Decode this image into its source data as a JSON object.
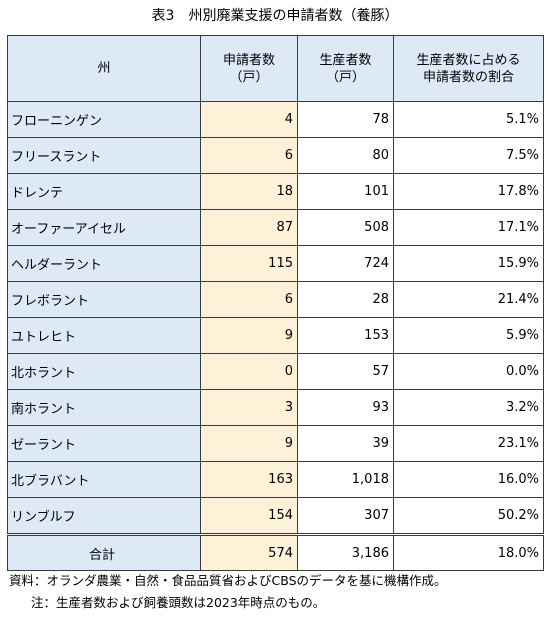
{
  "title": "表3　州別廃業支援の申請者数（養豚）",
  "headers": {
    "province": "州",
    "applicants": "申請者数\n（戸）",
    "producers": "生産者数\n（戸）",
    "share": "生産者数に占める\n申請者数の割合"
  },
  "rows": [
    {
      "province": "フローニンゲン",
      "applicants": "4",
      "producers": "78",
      "share": "5.1%"
    },
    {
      "province": "フリースラント",
      "applicants": "6",
      "producers": "80",
      "share": "7.5%"
    },
    {
      "province": "ドレンテ",
      "applicants": "18",
      "producers": "101",
      "share": "17.8%"
    },
    {
      "province": "オーファーアイセル",
      "applicants": "87",
      "producers": "508",
      "share": "17.1%"
    },
    {
      "province": "ヘルダーラント",
      "applicants": "115",
      "producers": "724",
      "share": "15.9%"
    },
    {
      "province": "フレボラント",
      "applicants": "6",
      "producers": "28",
      "share": "21.4%"
    },
    {
      "province": "ユトレヒト",
      "applicants": "9",
      "producers": "153",
      "share": "5.9%"
    },
    {
      "province": "北ホラント",
      "applicants": "0",
      "producers": "57",
      "share": "0.0%"
    },
    {
      "province": "南ホラント",
      "applicants": "3",
      "producers": "93",
      "share": "3.2%"
    },
    {
      "province": "ゼーラント",
      "applicants": "9",
      "producers": "39",
      "share": "23.1%"
    },
    {
      "province": "北ブラバント",
      "applicants": "163",
      "producers": "1,018",
      "share": "16.0%"
    },
    {
      "province": "リンブルフ",
      "applicants": "154",
      "producers": "307",
      "share": "50.2%"
    }
  ],
  "total": {
    "label": "合計",
    "applicants": "574",
    "producers": "3,186",
    "share": "18.0%"
  },
  "notes": {
    "source": "資料：オランダ農業・自然・食品品質省およびCBSのデータを基に機構作成。",
    "note": "注：生産者数および飼養頭数は2023年時点のもの。"
  },
  "colors": {
    "header_bg": "#dde9f6",
    "value_bg": "#fdf2d7",
    "border": "#3b3b3b"
  }
}
